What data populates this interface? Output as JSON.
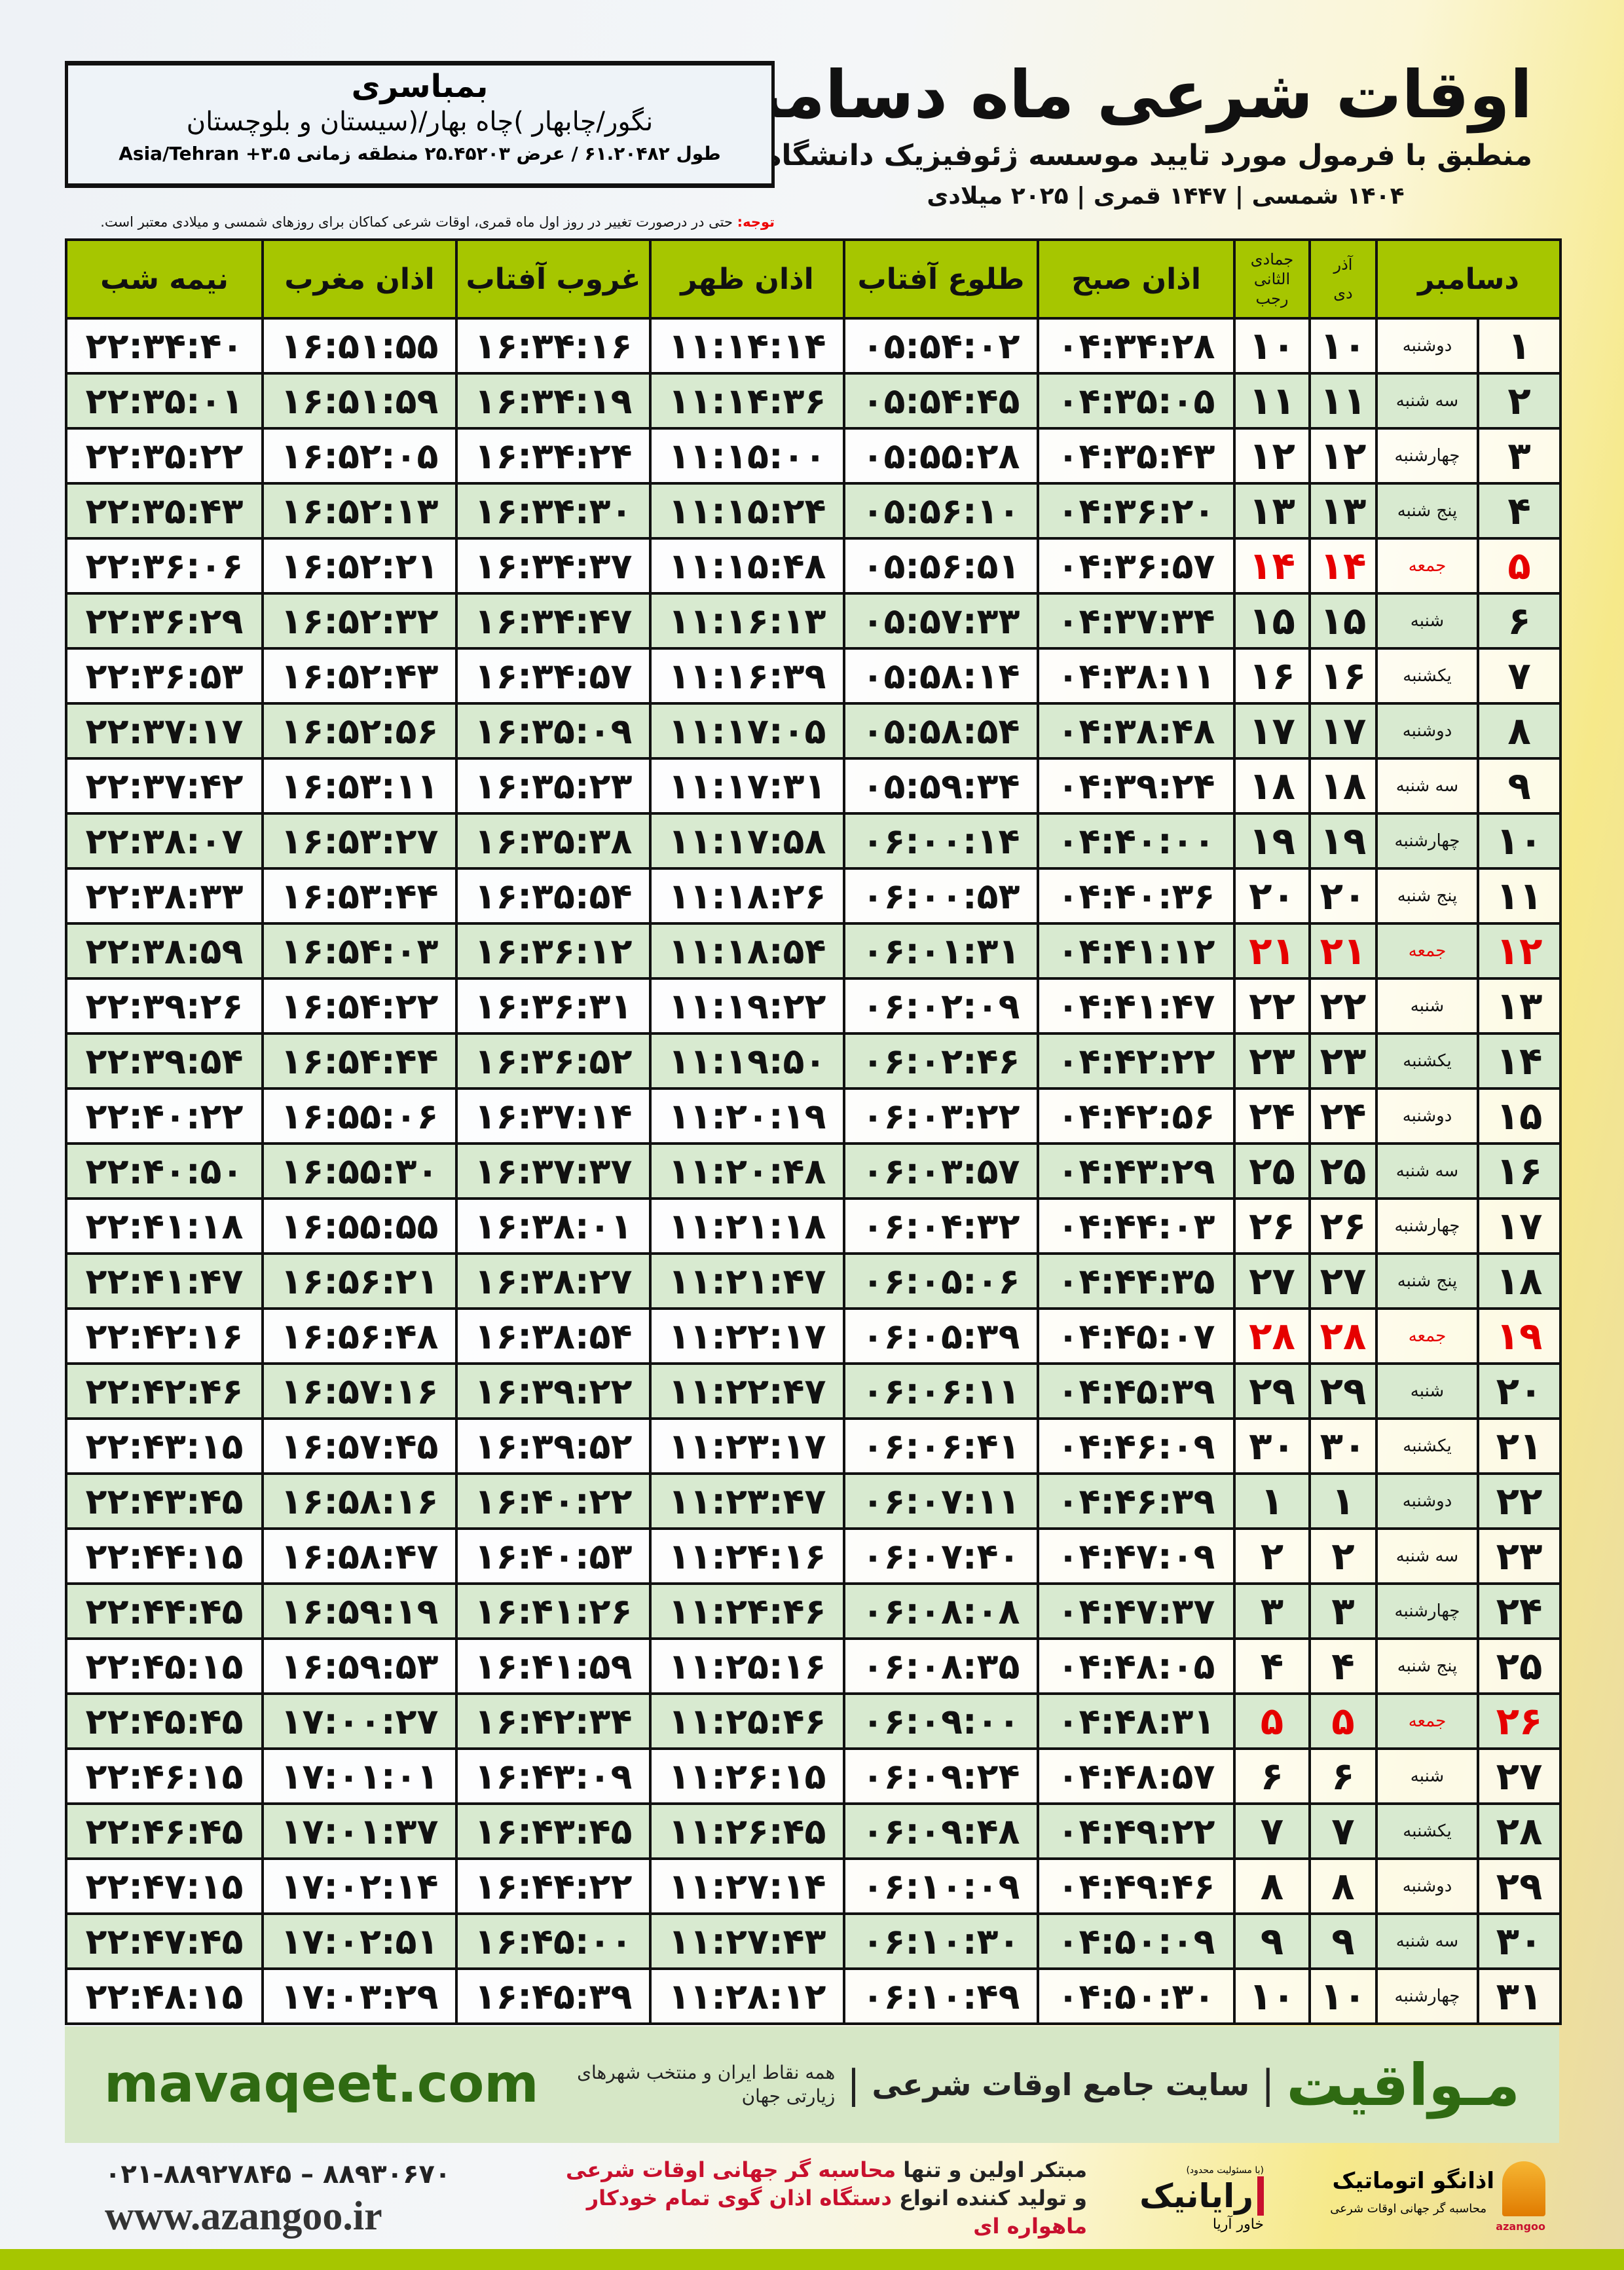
{
  "header": {
    "title": "اوقات شرعی ماه دسامبر",
    "subtitle": "منطبق با فرمول مورد تایید موسسه ژئوفیزیک دانشگاه تهران",
    "date_line": "۱۴۰۴ شمسی | ۱۴۴۷ قمری | ۲۰۲۵ میلادی"
  },
  "location": {
    "name": "بمباسری",
    "region": "نگور/چابهار )چاه بهار/(سیستان و بلوچستان",
    "coords": "طول ۶۱.۲۰۴۸۲ / عرض ۲۵.۴۵۲۰۳ منطقه زمانی ۳.۵+ Asia/Tehran"
  },
  "note": {
    "label": "توجه:",
    "text": "حتی در درصورت تغییر در روز اول ماه قمری، اوقات شرعی کماکان برای روزهای شمسی و میلادی معتبر است."
  },
  "table": {
    "headers": {
      "month": "دسامبر",
      "shamsi_top": "آذر",
      "shamsi_bottom": "دی",
      "hijri_top": "جمادی الثانی",
      "hijri_bottom": "رجب",
      "fajr": "اذان صبح",
      "sunrise": "طلوع آفتاب",
      "dhuhr": "اذان ظهر",
      "sunset": "غروب آفتاب",
      "maghrib": "اذان مغرب",
      "midnight": "نیمه شب"
    },
    "holiday_color": "#e60000",
    "rows": [
      {
        "day": "۱",
        "weekday": "دوشنبه",
        "shamsi": "۱۰",
        "hijri": "۱۰",
        "fajr": "۰۴:۳۴:۲۸",
        "sunrise": "۰۵:۵۴:۰۲",
        "dhuhr": "۱۱:۱۴:۱۴",
        "sunset": "۱۶:۳۴:۱۶",
        "maghrib": "۱۶:۵۱:۵۵",
        "midnight": "۲۲:۳۴:۴۰",
        "holiday": false
      },
      {
        "day": "۲",
        "weekday": "سه شنبه",
        "shamsi": "۱۱",
        "hijri": "۱۱",
        "fajr": "۰۴:۳۵:۰۵",
        "sunrise": "۰۵:۵۴:۴۵",
        "dhuhr": "۱۱:۱۴:۳۶",
        "sunset": "۱۶:۳۴:۱۹",
        "maghrib": "۱۶:۵۱:۵۹",
        "midnight": "۲۲:۳۵:۰۱",
        "holiday": false
      },
      {
        "day": "۳",
        "weekday": "چهارشنبه",
        "shamsi": "۱۲",
        "hijri": "۱۲",
        "fajr": "۰۴:۳۵:۴۳",
        "sunrise": "۰۵:۵۵:۲۸",
        "dhuhr": "۱۱:۱۵:۰۰",
        "sunset": "۱۶:۳۴:۲۴",
        "maghrib": "۱۶:۵۲:۰۵",
        "midnight": "۲۲:۳۵:۲۲",
        "holiday": false
      },
      {
        "day": "۴",
        "weekday": "پنج شنبه",
        "shamsi": "۱۳",
        "hijri": "۱۳",
        "fajr": "۰۴:۳۶:۲۰",
        "sunrise": "۰۵:۵۶:۱۰",
        "dhuhr": "۱۱:۱۵:۲۴",
        "sunset": "۱۶:۳۴:۳۰",
        "maghrib": "۱۶:۵۲:۱۳",
        "midnight": "۲۲:۳۵:۴۳",
        "holiday": false
      },
      {
        "day": "۵",
        "weekday": "جمعه",
        "shamsi": "۱۴",
        "hijri": "۱۴",
        "fajr": "۰۴:۳۶:۵۷",
        "sunrise": "۰۵:۵۶:۵۱",
        "dhuhr": "۱۱:۱۵:۴۸",
        "sunset": "۱۶:۳۴:۳۷",
        "maghrib": "۱۶:۵۲:۲۱",
        "midnight": "۲۲:۳۶:۰۶",
        "holiday": true
      },
      {
        "day": "۶",
        "weekday": "شنبه",
        "shamsi": "۱۵",
        "hijri": "۱۵",
        "fajr": "۰۴:۳۷:۳۴",
        "sunrise": "۰۵:۵۷:۳۳",
        "dhuhr": "۱۱:۱۶:۱۳",
        "sunset": "۱۶:۳۴:۴۷",
        "maghrib": "۱۶:۵۲:۳۲",
        "midnight": "۲۲:۳۶:۲۹",
        "holiday": false
      },
      {
        "day": "۷",
        "weekday": "یکشنبه",
        "shamsi": "۱۶",
        "hijri": "۱۶",
        "fajr": "۰۴:۳۸:۱۱",
        "sunrise": "۰۵:۵۸:۱۴",
        "dhuhr": "۱۱:۱۶:۳۹",
        "sunset": "۱۶:۳۴:۵۷",
        "maghrib": "۱۶:۵۲:۴۳",
        "midnight": "۲۲:۳۶:۵۳",
        "holiday": false
      },
      {
        "day": "۸",
        "weekday": "دوشنبه",
        "shamsi": "۱۷",
        "hijri": "۱۷",
        "fajr": "۰۴:۳۸:۴۸",
        "sunrise": "۰۵:۵۸:۵۴",
        "dhuhr": "۱۱:۱۷:۰۵",
        "sunset": "۱۶:۳۵:۰۹",
        "maghrib": "۱۶:۵۲:۵۶",
        "midnight": "۲۲:۳۷:۱۷",
        "holiday": false
      },
      {
        "day": "۹",
        "weekday": "سه شنبه",
        "shamsi": "۱۸",
        "hijri": "۱۸",
        "fajr": "۰۴:۳۹:۲۴",
        "sunrise": "۰۵:۵۹:۳۴",
        "dhuhr": "۱۱:۱۷:۳۱",
        "sunset": "۱۶:۳۵:۲۳",
        "maghrib": "۱۶:۵۳:۱۱",
        "midnight": "۲۲:۳۷:۴۲",
        "holiday": false
      },
      {
        "day": "۱۰",
        "weekday": "چهارشنبه",
        "shamsi": "۱۹",
        "hijri": "۱۹",
        "fajr": "۰۴:۴۰:۰۰",
        "sunrise": "۰۶:۰۰:۱۴",
        "dhuhr": "۱۱:۱۷:۵۸",
        "sunset": "۱۶:۳۵:۳۸",
        "maghrib": "۱۶:۵۳:۲۷",
        "midnight": "۲۲:۳۸:۰۷",
        "holiday": false
      },
      {
        "day": "۱۱",
        "weekday": "پنج شنبه",
        "shamsi": "۲۰",
        "hijri": "۲۰",
        "fajr": "۰۴:۴۰:۳۶",
        "sunrise": "۰۶:۰۰:۵۳",
        "dhuhr": "۱۱:۱۸:۲۶",
        "sunset": "۱۶:۳۵:۵۴",
        "maghrib": "۱۶:۵۳:۴۴",
        "midnight": "۲۲:۳۸:۳۳",
        "holiday": false
      },
      {
        "day": "۱۲",
        "weekday": "جمعه",
        "shamsi": "۲۱",
        "hijri": "۲۱",
        "fajr": "۰۴:۴۱:۱۲",
        "sunrise": "۰۶:۰۱:۳۱",
        "dhuhr": "۱۱:۱۸:۵۴",
        "sunset": "۱۶:۳۶:۱۲",
        "maghrib": "۱۶:۵۴:۰۳",
        "midnight": "۲۲:۳۸:۵۹",
        "holiday": true
      },
      {
        "day": "۱۳",
        "weekday": "شنبه",
        "shamsi": "۲۲",
        "hijri": "۲۲",
        "fajr": "۰۴:۴۱:۴۷",
        "sunrise": "۰۶:۰۲:۰۹",
        "dhuhr": "۱۱:۱۹:۲۲",
        "sunset": "۱۶:۳۶:۳۱",
        "maghrib": "۱۶:۵۴:۲۲",
        "midnight": "۲۲:۳۹:۲۶",
        "holiday": false
      },
      {
        "day": "۱۴",
        "weekday": "یکشنبه",
        "shamsi": "۲۳",
        "hijri": "۲۳",
        "fajr": "۰۴:۴۲:۲۲",
        "sunrise": "۰۶:۰۲:۴۶",
        "dhuhr": "۱۱:۱۹:۵۰",
        "sunset": "۱۶:۳۶:۵۲",
        "maghrib": "۱۶:۵۴:۴۴",
        "midnight": "۲۲:۳۹:۵۴",
        "holiday": false
      },
      {
        "day": "۱۵",
        "weekday": "دوشنبه",
        "shamsi": "۲۴",
        "hijri": "۲۴",
        "fajr": "۰۴:۴۲:۵۶",
        "sunrise": "۰۶:۰۳:۲۲",
        "dhuhr": "۱۱:۲۰:۱۹",
        "sunset": "۱۶:۳۷:۱۴",
        "maghrib": "۱۶:۵۵:۰۶",
        "midnight": "۲۲:۴۰:۲۲",
        "holiday": false
      },
      {
        "day": "۱۶",
        "weekday": "سه شنبه",
        "shamsi": "۲۵",
        "hijri": "۲۵",
        "fajr": "۰۴:۴۳:۲۹",
        "sunrise": "۰۶:۰۳:۵۷",
        "dhuhr": "۱۱:۲۰:۴۸",
        "sunset": "۱۶:۳۷:۳۷",
        "maghrib": "۱۶:۵۵:۳۰",
        "midnight": "۲۲:۴۰:۵۰",
        "holiday": false
      },
      {
        "day": "۱۷",
        "weekday": "چهارشنبه",
        "shamsi": "۲۶",
        "hijri": "۲۶",
        "fajr": "۰۴:۴۴:۰۳",
        "sunrise": "۰۶:۰۴:۳۲",
        "dhuhr": "۱۱:۲۱:۱۸",
        "sunset": "۱۶:۳۸:۰۱",
        "maghrib": "۱۶:۵۵:۵۵",
        "midnight": "۲۲:۴۱:۱۸",
        "holiday": false
      },
      {
        "day": "۱۸",
        "weekday": "پنج شنبه",
        "shamsi": "۲۷",
        "hijri": "۲۷",
        "fajr": "۰۴:۴۴:۳۵",
        "sunrise": "۰۶:۰۵:۰۶",
        "dhuhr": "۱۱:۲۱:۴۷",
        "sunset": "۱۶:۳۸:۲۷",
        "maghrib": "۱۶:۵۶:۲۱",
        "midnight": "۲۲:۴۱:۴۷",
        "holiday": false
      },
      {
        "day": "۱۹",
        "weekday": "جمعه",
        "shamsi": "۲۸",
        "hijri": "۲۸",
        "fajr": "۰۴:۴۵:۰۷",
        "sunrise": "۰۶:۰۵:۳۹",
        "dhuhr": "۱۱:۲۲:۱۷",
        "sunset": "۱۶:۳۸:۵۴",
        "maghrib": "۱۶:۵۶:۴۸",
        "midnight": "۲۲:۴۲:۱۶",
        "holiday": true
      },
      {
        "day": "۲۰",
        "weekday": "شنبه",
        "shamsi": "۲۹",
        "hijri": "۲۹",
        "fajr": "۰۴:۴۵:۳۹",
        "sunrise": "۰۶:۰۶:۱۱",
        "dhuhr": "۱۱:۲۲:۴۷",
        "sunset": "۱۶:۳۹:۲۲",
        "maghrib": "۱۶:۵۷:۱۶",
        "midnight": "۲۲:۴۲:۴۶",
        "holiday": false
      },
      {
        "day": "۲۱",
        "weekday": "یکشنبه",
        "shamsi": "۳۰",
        "hijri": "۳۰",
        "fajr": "۰۴:۴۶:۰۹",
        "sunrise": "۰۶:۰۶:۴۱",
        "dhuhr": "۱۱:۲۳:۱۷",
        "sunset": "۱۶:۳۹:۵۲",
        "maghrib": "۱۶:۵۷:۴۵",
        "midnight": "۲۲:۴۳:۱۵",
        "holiday": false
      },
      {
        "day": "۲۲",
        "weekday": "دوشنبه",
        "shamsi": "۱",
        "hijri": "۱",
        "fajr": "۰۴:۴۶:۳۹",
        "sunrise": "۰۶:۰۷:۱۱",
        "dhuhr": "۱۱:۲۳:۴۷",
        "sunset": "۱۶:۴۰:۲۲",
        "maghrib": "۱۶:۵۸:۱۶",
        "midnight": "۲۲:۴۳:۴۵",
        "holiday": false
      },
      {
        "day": "۲۳",
        "weekday": "سه شنبه",
        "shamsi": "۲",
        "hijri": "۲",
        "fajr": "۰۴:۴۷:۰۹",
        "sunrise": "۰۶:۰۷:۴۰",
        "dhuhr": "۱۱:۲۴:۱۶",
        "sunset": "۱۶:۴۰:۵۳",
        "maghrib": "۱۶:۵۸:۴۷",
        "midnight": "۲۲:۴۴:۱۵",
        "holiday": false
      },
      {
        "day": "۲۴",
        "weekday": "چهارشنبه",
        "shamsi": "۳",
        "hijri": "۳",
        "fajr": "۰۴:۴۷:۳۷",
        "sunrise": "۰۶:۰۸:۰۸",
        "dhuhr": "۱۱:۲۴:۴۶",
        "sunset": "۱۶:۴۱:۲۶",
        "maghrib": "۱۶:۵۹:۱۹",
        "midnight": "۲۲:۴۴:۴۵",
        "holiday": false
      },
      {
        "day": "۲۵",
        "weekday": "پنج شنبه",
        "shamsi": "۴",
        "hijri": "۴",
        "fajr": "۰۴:۴۸:۰۵",
        "sunrise": "۰۶:۰۸:۳۵",
        "dhuhr": "۱۱:۲۵:۱۶",
        "sunset": "۱۶:۴۱:۵۹",
        "maghrib": "۱۶:۵۹:۵۳",
        "midnight": "۲۲:۴۵:۱۵",
        "holiday": false
      },
      {
        "day": "۲۶",
        "weekday": "جمعه",
        "shamsi": "۵",
        "hijri": "۵",
        "fajr": "۰۴:۴۸:۳۱",
        "sunrise": "۰۶:۰۹:۰۰",
        "dhuhr": "۱۱:۲۵:۴۶",
        "sunset": "۱۶:۴۲:۳۴",
        "maghrib": "۱۷:۰۰:۲۷",
        "midnight": "۲۲:۴۵:۴۵",
        "holiday": true
      },
      {
        "day": "۲۷",
        "weekday": "شنبه",
        "shamsi": "۶",
        "hijri": "۶",
        "fajr": "۰۴:۴۸:۵۷",
        "sunrise": "۰۶:۰۹:۲۴",
        "dhuhr": "۱۱:۲۶:۱۵",
        "sunset": "۱۶:۴۳:۰۹",
        "maghrib": "۱۷:۰۱:۰۱",
        "midnight": "۲۲:۴۶:۱۵",
        "holiday": false
      },
      {
        "day": "۲۸",
        "weekday": "یکشنبه",
        "shamsi": "۷",
        "hijri": "۷",
        "fajr": "۰۴:۴۹:۲۲",
        "sunrise": "۰۶:۰۹:۴۸",
        "dhuhr": "۱۱:۲۶:۴۵",
        "sunset": "۱۶:۴۳:۴۵",
        "maghrib": "۱۷:۰۱:۳۷",
        "midnight": "۲۲:۴۶:۴۵",
        "holiday": false
      },
      {
        "day": "۲۹",
        "weekday": "دوشنبه",
        "shamsi": "۸",
        "hijri": "۸",
        "fajr": "۰۴:۴۹:۴۶",
        "sunrise": "۰۶:۱۰:۰۹",
        "dhuhr": "۱۱:۲۷:۱۴",
        "sunset": "۱۶:۴۴:۲۲",
        "maghrib": "۱۷:۰۲:۱۴",
        "midnight": "۲۲:۴۷:۱۵",
        "holiday": false
      },
      {
        "day": "۳۰",
        "weekday": "سه شنبه",
        "shamsi": "۹",
        "hijri": "۹",
        "fajr": "۰۴:۵۰:۰۹",
        "sunrise": "۰۶:۱۰:۳۰",
        "dhuhr": "۱۱:۲۷:۴۳",
        "sunset": "۱۶:۴۵:۰۰",
        "maghrib": "۱۷:۰۲:۵۱",
        "midnight": "۲۲:۴۷:۴۵",
        "holiday": false
      },
      {
        "day": "۳۱",
        "weekday": "چهارشنبه",
        "shamsi": "۱۰",
        "hijri": "۱۰",
        "fajr": "۰۴:۵۰:۳۰",
        "sunrise": "۰۶:۱۰:۴۹",
        "dhuhr": "۱۱:۲۸:۱۲",
        "sunset": "۱۶:۴۵:۳۹",
        "maghrib": "۱۷:۰۳:۲۹",
        "midnight": "۲۲:۴۸:۱۵",
        "holiday": false
      }
    ]
  },
  "banner": {
    "site": "mavaqeet.com",
    "logo": "مـواقیت",
    "tagline": "سایت جامع اوقات شرعی",
    "tagline2": "همه نقاط ایران و منتخب شهرهای زیارتی جهان"
  },
  "footer": {
    "phone": "۰۲۱-۸۸۹۲۷۸۴۵ – ۸۸۹۳۰۶۷۰",
    "website": "www.azangoo.ir",
    "line1_a": "مبتکر اولین و تنها",
    "line1_b": "محاسبه گر جهانی اوقات شرعی",
    "line2_a": "و تولید کننده انواع",
    "line2_b": "دستگاه اذان گوی تمام خودکار ماهواره ای",
    "rayanik_note": "(با مسئولیت محدود)",
    "rayanik_name": "رایانیک",
    "rayanik_sub": "خاور آریا",
    "azangoo_name": "اذانگو اتوماتیک",
    "azangoo_sub": "محاسبه گر جهانی اوقات شرعی",
    "azangoo_en": "azangoo"
  }
}
